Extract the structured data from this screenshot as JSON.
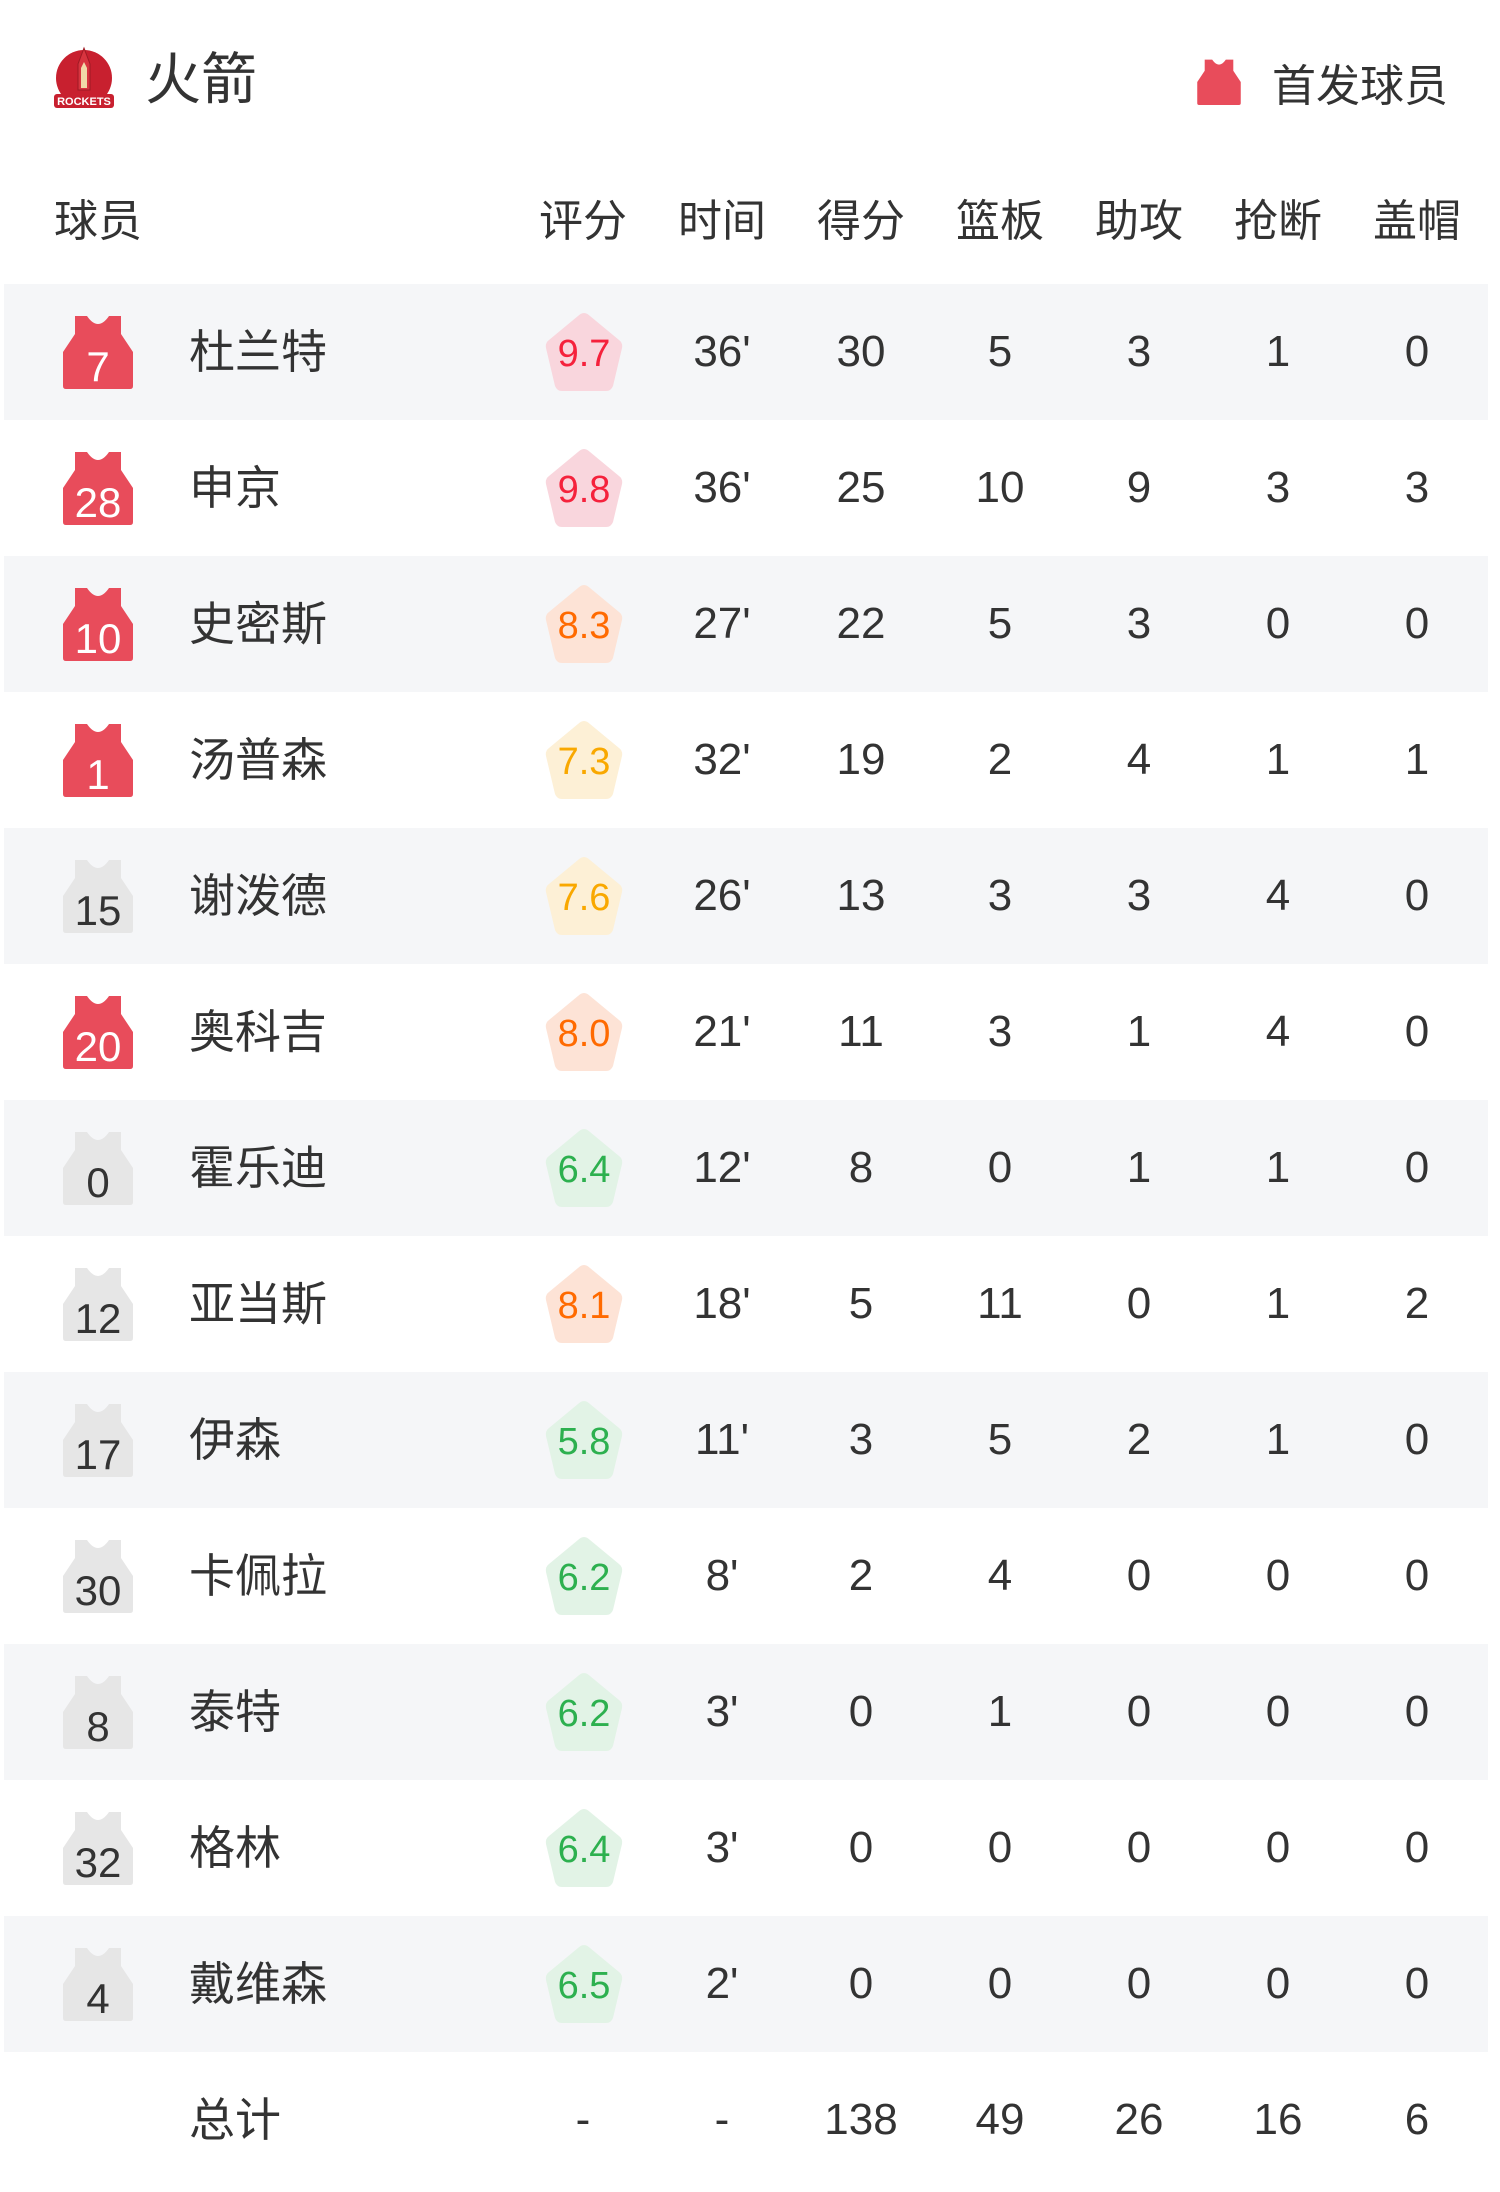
{
  "header": {
    "team_name": "火箭",
    "logo_text": "ROCKETS",
    "legend_label": "首发球员",
    "starter_color": "#e84c5b",
    "bench_color": "#e6e6e6"
  },
  "columns": [
    "球员",
    "评分",
    "时间",
    "得分",
    "篮板",
    "助攻",
    "抢断",
    "盖帽"
  ],
  "rating_colors": {
    "red": {
      "bg": "#f9d6dd",
      "fg": "#f5223c"
    },
    "orange": {
      "bg": "#fde3d6",
      "fg": "#ff6a00"
    },
    "yellow": {
      "bg": "#fdf0d6",
      "fg": "#f9a800"
    },
    "green": {
      "bg": "#e2f3e6",
      "fg": "#2db04f"
    }
  },
  "players": [
    {
      "number": "7",
      "name": "杜兰特",
      "starter": true,
      "rating": "9.7",
      "tier": "red",
      "min": "36'",
      "pts": "30",
      "reb": "5",
      "ast": "3",
      "stl": "1",
      "blk": "0"
    },
    {
      "number": "28",
      "name": "申京",
      "starter": true,
      "rating": "9.8",
      "tier": "red",
      "min": "36'",
      "pts": "25",
      "reb": "10",
      "ast": "9",
      "stl": "3",
      "blk": "3"
    },
    {
      "number": "10",
      "name": "史密斯",
      "starter": true,
      "rating": "8.3",
      "tier": "orange",
      "min": "27'",
      "pts": "22",
      "reb": "5",
      "ast": "3",
      "stl": "0",
      "blk": "0"
    },
    {
      "number": "1",
      "name": "汤普森",
      "starter": true,
      "rating": "7.3",
      "tier": "yellow",
      "min": "32'",
      "pts": "19",
      "reb": "2",
      "ast": "4",
      "stl": "1",
      "blk": "1"
    },
    {
      "number": "15",
      "name": "谢泼德",
      "starter": false,
      "rating": "7.6",
      "tier": "yellow",
      "min": "26'",
      "pts": "13",
      "reb": "3",
      "ast": "3",
      "stl": "4",
      "blk": "0"
    },
    {
      "number": "20",
      "name": "奥科吉",
      "starter": true,
      "rating": "8.0",
      "tier": "orange",
      "min": "21'",
      "pts": "11",
      "reb": "3",
      "ast": "1",
      "stl": "4",
      "blk": "0"
    },
    {
      "number": "0",
      "name": "霍乐迪",
      "starter": false,
      "rating": "6.4",
      "tier": "green",
      "min": "12'",
      "pts": "8",
      "reb": "0",
      "ast": "1",
      "stl": "1",
      "blk": "0"
    },
    {
      "number": "12",
      "name": "亚当斯",
      "starter": false,
      "rating": "8.1",
      "tier": "orange",
      "min": "18'",
      "pts": "5",
      "reb": "11",
      "ast": "0",
      "stl": "1",
      "blk": "2"
    },
    {
      "number": "17",
      "name": "伊森",
      "starter": false,
      "rating": "5.8",
      "tier": "green",
      "min": "11'",
      "pts": "3",
      "reb": "5",
      "ast": "2",
      "stl": "1",
      "blk": "0"
    },
    {
      "number": "30",
      "name": "卡佩拉",
      "starter": false,
      "rating": "6.2",
      "tier": "green",
      "min": "8'",
      "pts": "2",
      "reb": "4",
      "ast": "0",
      "stl": "0",
      "blk": "0"
    },
    {
      "number": "8",
      "name": "泰特",
      "starter": false,
      "rating": "6.2",
      "tier": "green",
      "min": "3'",
      "pts": "0",
      "reb": "1",
      "ast": "0",
      "stl": "0",
      "blk": "0"
    },
    {
      "number": "32",
      "name": "格林",
      "starter": false,
      "rating": "6.4",
      "tier": "green",
      "min": "3'",
      "pts": "0",
      "reb": "0",
      "ast": "0",
      "stl": "0",
      "blk": "0"
    },
    {
      "number": "4",
      "name": "戴维森",
      "starter": false,
      "rating": "6.5",
      "tier": "green",
      "min": "2'",
      "pts": "0",
      "reb": "0",
      "ast": "0",
      "stl": "0",
      "blk": "0"
    }
  ],
  "totals": {
    "label": "总计",
    "rating": "-",
    "min": "-",
    "pts": "138",
    "reb": "49",
    "ast": "26",
    "stl": "16",
    "blk": "6"
  }
}
